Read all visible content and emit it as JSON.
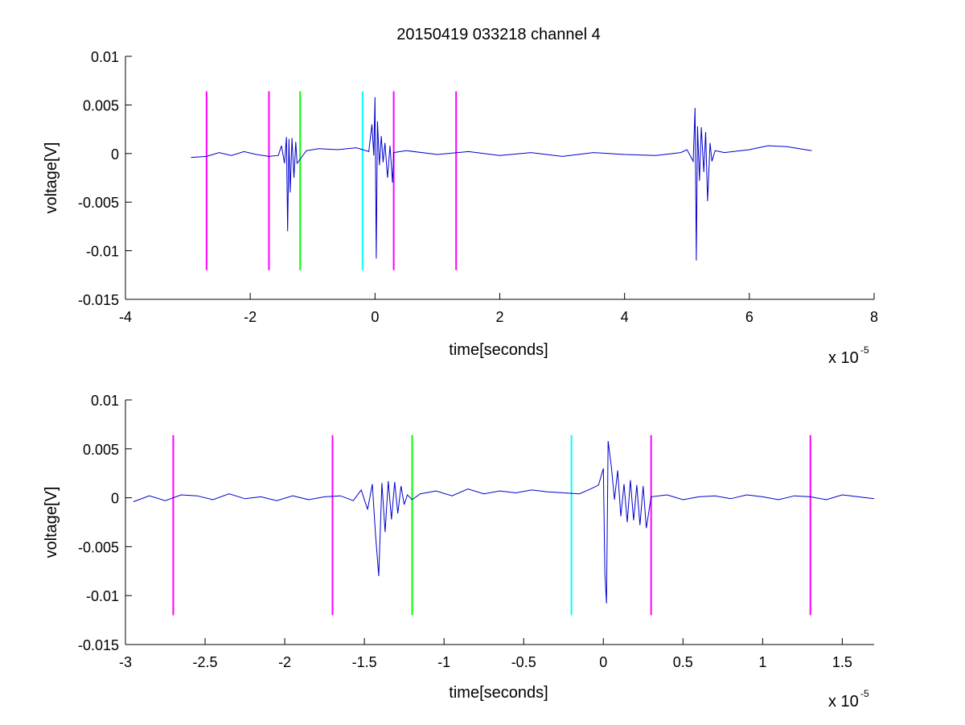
{
  "title": "20150419 033218 channel 4",
  "chart_data": [
    {
      "type": "line",
      "xlabel": "time[seconds]",
      "ylabel": "voltage[V]",
      "x_exponent_label": "x 10",
      "x_exponent_power": "-5",
      "xlim": [
        -4,
        8
      ],
      "ylim": [
        -0.015,
        0.01
      ],
      "xticks": [
        -4,
        -2,
        0,
        2,
        4,
        6,
        8
      ],
      "xtick_labels": [
        "-4",
        "-2",
        "0",
        "2",
        "4",
        "6",
        "8"
      ],
      "yticks": [
        -0.015,
        -0.01,
        -0.005,
        0,
        0.005,
        0.01
      ],
      "ytick_labels": [
        "-0.015",
        "-0.01",
        "-0.005",
        "0",
        "0.005",
        "0.01"
      ],
      "grid": false,
      "series": [
        {
          "color": "#0000cc",
          "x": [
            -2.95,
            -2.7,
            -2.5,
            -2.3,
            -2.1,
            -1.9,
            -1.7,
            -1.55,
            -1.5,
            -1.45,
            -1.42,
            -1.4,
            -1.38,
            -1.36,
            -1.33,
            -1.3,
            -1.27,
            -1.25,
            -1.2,
            -1.1,
            -0.9,
            -0.6,
            -0.3,
            -0.1,
            -0.05,
            -0.02,
            0.0,
            0.02,
            0.04,
            0.07,
            0.1,
            0.13,
            0.16,
            0.2,
            0.24,
            0.28,
            0.3,
            0.5,
            1.0,
            1.5,
            2.0,
            2.5,
            3.0,
            3.5,
            4.0,
            4.5,
            4.9,
            5.0,
            5.1,
            5.13,
            5.15,
            5.17,
            5.2,
            5.23,
            5.27,
            5.3,
            5.33,
            5.37,
            5.4,
            5.45,
            5.6,
            6.0,
            6.3,
            6.6,
            7.0
          ],
          "y": [
            -0.0004,
            -0.0003,
            0.0001,
            -0.0002,
            0.0002,
            -0.0001,
            -0.0003,
            -0.0002,
            0.0008,
            -0.001,
            0.0017,
            -0.008,
            0.0015,
            -0.004,
            0.0016,
            -0.0025,
            0.0012,
            -0.001,
            -0.0006,
            0.0003,
            0.0005,
            0.0004,
            0.0006,
            0.0002,
            0.003,
            -0.0002,
            0.0058,
            -0.0108,
            0.0033,
            -0.0012,
            0.0018,
            -0.0009,
            0.0011,
            -0.0025,
            0.0008,
            -0.003,
            0.0001,
            0.0003,
            -0.0001,
            0.0002,
            -0.0002,
            0.0001,
            -0.0003,
            0.0001,
            -0.0001,
            -0.0002,
            0.0001,
            0.0004,
            -0.0008,
            0.0047,
            -0.011,
            0.0028,
            -0.0028,
            0.0027,
            -0.0019,
            0.0022,
            -0.0049,
            0.0011,
            -0.0008,
            0.0003,
            0.0001,
            0.0004,
            0.0008,
            0.0007,
            0.0003
          ]
        }
      ],
      "markers": [
        {
          "x": -2.7,
          "color": "#ff00ff"
        },
        {
          "x": -1.7,
          "color": "#ff00ff"
        },
        {
          "x": -1.2,
          "color": "#00ff00"
        },
        {
          "x": -0.2,
          "color": "#00ffff"
        },
        {
          "x": 0.3,
          "color": "#ff00ff"
        },
        {
          "x": 1.3,
          "color": "#ff00ff"
        }
      ],
      "marker_y_range": [
        -0.012,
        0.0064
      ]
    },
    {
      "type": "line",
      "xlabel": "time[seconds]",
      "ylabel": "voltage[V]",
      "x_exponent_label": "x 10",
      "x_exponent_power": "-5",
      "xlim": [
        -3.0,
        1.7
      ],
      "ylim": [
        -0.015,
        0.01
      ],
      "xticks": [
        -3,
        -2.5,
        -2,
        -1.5,
        -1,
        -0.5,
        0,
        0.5,
        1,
        1.5
      ],
      "xtick_labels": [
        "-3",
        "-2.5",
        "-2",
        "-1.5",
        "-1",
        "-0.5",
        "0",
        "0.5",
        "1",
        "1.5"
      ],
      "yticks": [
        -0.015,
        -0.01,
        -0.005,
        0,
        0.005,
        0.01
      ],
      "ytick_labels": [
        "-0.015",
        "-0.01",
        "-0.005",
        "0",
        "0.005",
        "0.01"
      ],
      "grid": false,
      "series": [
        {
          "color": "#0000cc",
          "x": [
            -2.95,
            -2.85,
            -2.75,
            -2.65,
            -2.55,
            -2.45,
            -2.35,
            -2.25,
            -2.15,
            -2.05,
            -1.95,
            -1.85,
            -1.75,
            -1.65,
            -1.57,
            -1.52,
            -1.48,
            -1.45,
            -1.43,
            -1.41,
            -1.39,
            -1.37,
            -1.35,
            -1.33,
            -1.31,
            -1.29,
            -1.27,
            -1.25,
            -1.23,
            -1.2,
            -1.15,
            -1.05,
            -0.95,
            -0.85,
            -0.75,
            -0.65,
            -0.55,
            -0.45,
            -0.35,
            -0.25,
            -0.15,
            -0.08,
            -0.03,
            0.0,
            0.01,
            0.02,
            0.03,
            0.05,
            0.07,
            0.09,
            0.11,
            0.13,
            0.15,
            0.17,
            0.19,
            0.21,
            0.23,
            0.25,
            0.27,
            0.3,
            0.4,
            0.5,
            0.6,
            0.7,
            0.8,
            0.9,
            1.0,
            1.1,
            1.2,
            1.3,
            1.4,
            1.5,
            1.6,
            1.7
          ],
          "y": [
            -0.0004,
            0.0002,
            -0.0003,
            0.0003,
            0.0002,
            -0.0002,
            0.0004,
            -0.0001,
            0.0001,
            -0.0003,
            0.0002,
            -0.0002,
            0.0001,
            0.0002,
            -0.0003,
            0.0008,
            -0.0012,
            0.0014,
            -0.0038,
            -0.008,
            0.0015,
            -0.0035,
            0.0017,
            -0.0022,
            0.0016,
            -0.0016,
            0.0012,
            -0.0007,
            0.0003,
            -0.0002,
            0.0004,
            0.0007,
            0.0002,
            0.0009,
            0.0004,
            0.0007,
            0.0005,
            0.0008,
            0.0006,
            0.0005,
            0.0004,
            0.0009,
            0.0013,
            0.003,
            -0.0078,
            -0.0108,
            0.0058,
            0.0032,
            -0.0002,
            0.0028,
            -0.0019,
            0.0014,
            -0.0025,
            0.0018,
            -0.0023,
            0.0013,
            -0.0028,
            0.0012,
            -0.0031,
            0.0001,
            0.0003,
            -0.0002,
            0.0001,
            0.0002,
            -0.0001,
            0.0003,
            0.0001,
            -0.0002,
            0.0002,
            0.0001,
            -0.0002,
            0.0003,
            0.0001,
            -0.0001
          ]
        }
      ],
      "markers": [
        {
          "x": -2.7,
          "color": "#ff00ff"
        },
        {
          "x": -1.7,
          "color": "#ff00ff"
        },
        {
          "x": -1.2,
          "color": "#00ff00"
        },
        {
          "x": -0.2,
          "color": "#00ffff"
        },
        {
          "x": 0.3,
          "color": "#ff00ff"
        },
        {
          "x": 1.3,
          "color": "#ff00ff"
        }
      ],
      "marker_y_range": [
        -0.012,
        0.0064
      ]
    }
  ]
}
